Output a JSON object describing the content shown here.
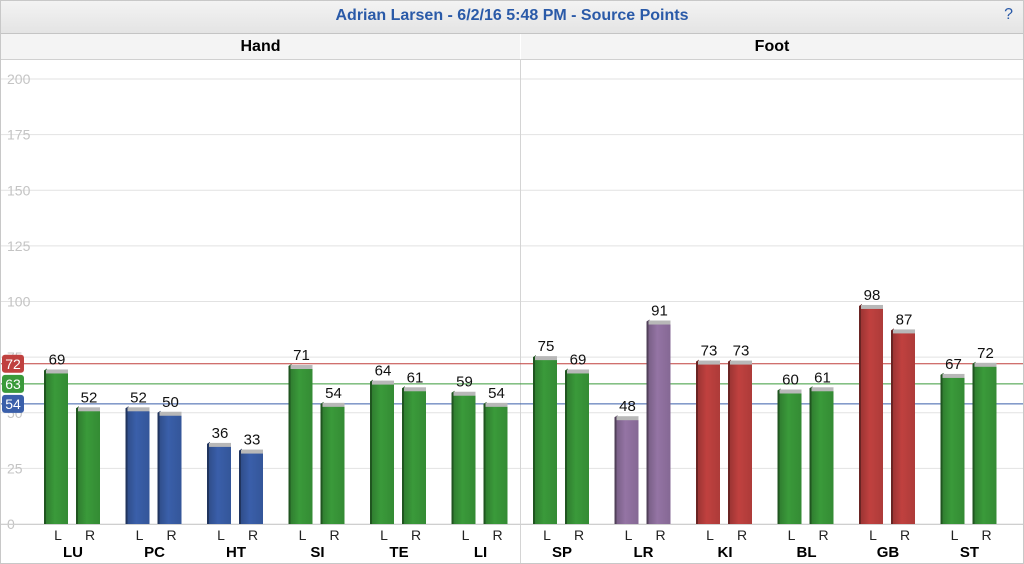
{
  "header": {
    "title": "Adrian Larsen - 6/2/16 5:48 PM - Source Points",
    "help_label": "?"
  },
  "panels": [
    {
      "label": "Hand"
    },
    {
      "label": "Foot"
    }
  ],
  "colors": {
    "green": "#3a9a3a",
    "blue": "#3a5faa",
    "red": "#c0413f",
    "purple": "#9474a4",
    "ref_red": "#c0413f",
    "ref_green": "#3a9a3a",
    "ref_blue": "#3a5faa"
  },
  "chart_data": {
    "type": "bar",
    "ylim": [
      0,
      200
    ],
    "yticks": [
      "0",
      "25",
      "50",
      "75",
      "100",
      "125",
      "150",
      "175",
      "200"
    ],
    "reference_lines": [
      {
        "value": 72,
        "label": "72",
        "color": "red"
      },
      {
        "value": 63,
        "label": "63",
        "color": "green"
      },
      {
        "value": 54,
        "label": "54",
        "color": "blue"
      }
    ],
    "sub_labels": [
      "L",
      "R"
    ],
    "categories": [
      "LU",
      "PC",
      "HT",
      "SI",
      "TE",
      "LI",
      "SP",
      "LR",
      "KI",
      "BL",
      "GB",
      "ST"
    ],
    "series": [
      {
        "values": [
          69,
          52,
          36,
          71,
          64,
          59,
          75,
          48,
          73,
          60,
          98,
          67
        ],
        "colors": [
          "green",
          "blue",
          "blue",
          "green",
          "green",
          "green",
          "green",
          "purple",
          "red",
          "green",
          "red",
          "green"
        ]
      },
      {
        "values": [
          52,
          50,
          33,
          54,
          61,
          54,
          69,
          91,
          73,
          61,
          87,
          72
        ],
        "colors": [
          "green",
          "blue",
          "blue",
          "green",
          "green",
          "green",
          "green",
          "purple",
          "red",
          "green",
          "red",
          "green"
        ]
      }
    ]
  }
}
